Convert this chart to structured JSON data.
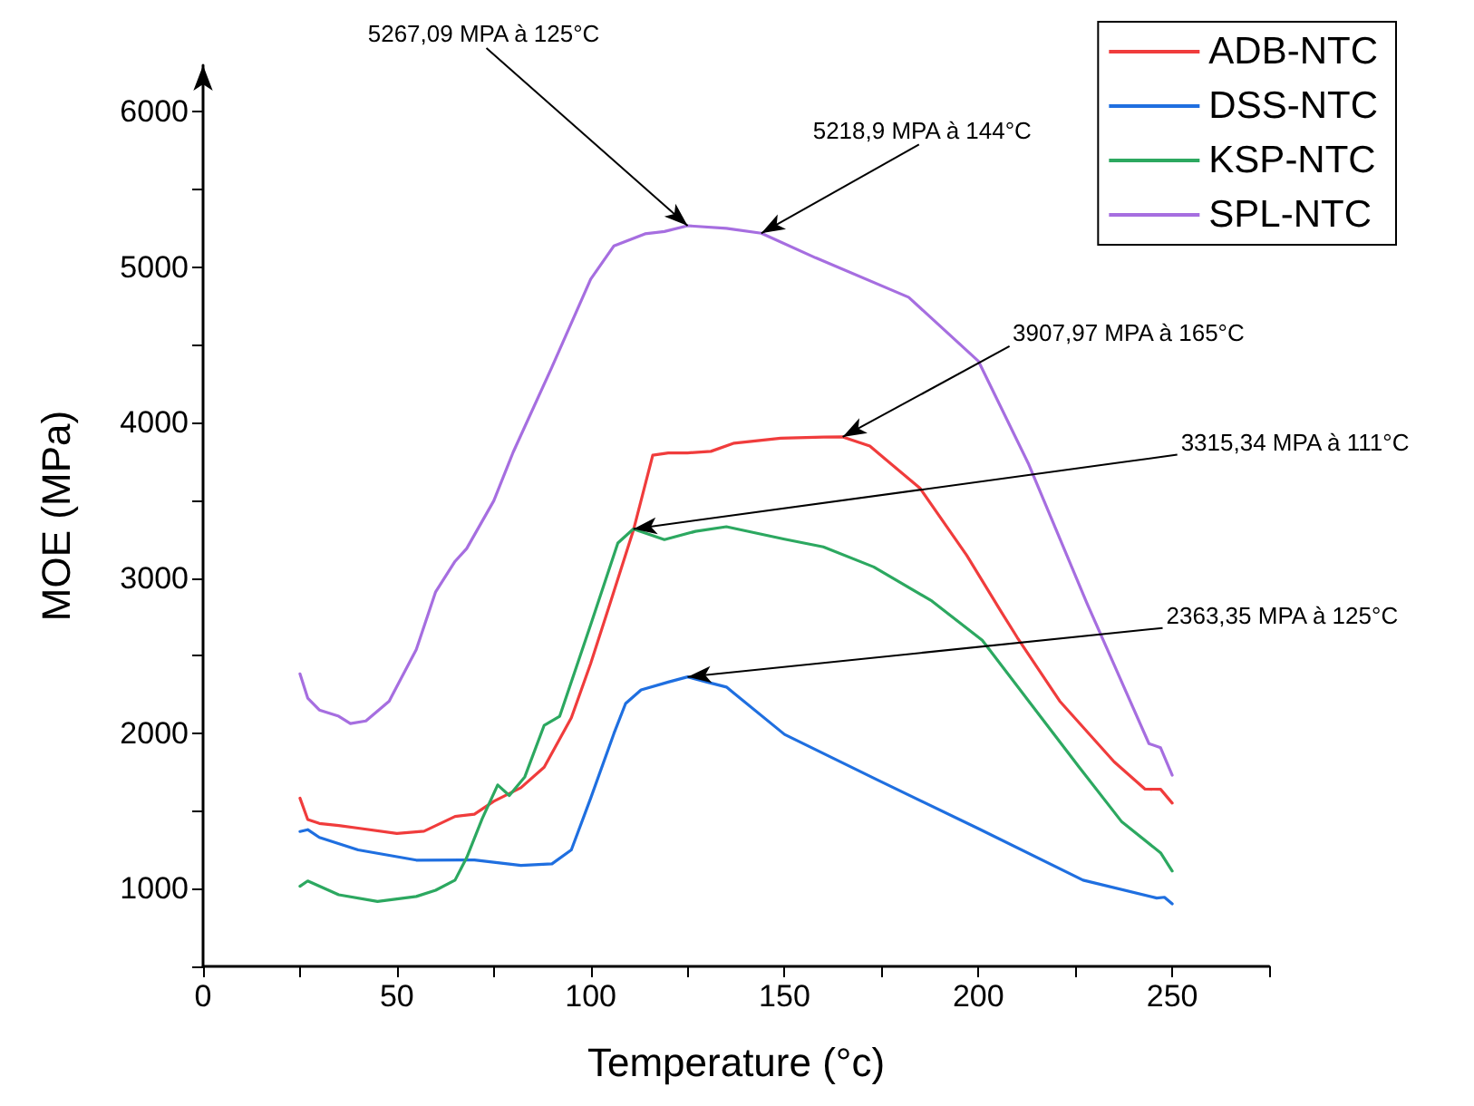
{
  "chart_data": {
    "type": "line",
    "xlabel": "Temperature (°c)",
    "ylabel": "MOE (MPa)",
    "xlim": [
      0,
      275
    ],
    "ylim": [
      500,
      6300
    ],
    "xticks": [
      0,
      {
        "value": 25,
        "label": null
      },
      50,
      {
        "value": 75,
        "label": null
      },
      100,
      {
        "value": 125,
        "label": null
      },
      150,
      {
        "value": 175,
        "label": null
      },
      200,
      {
        "value": 225,
        "label": null
      },
      250,
      {
        "value": 275,
        "label": null
      }
    ],
    "yticks": [
      {
        "value": 500,
        "label": null
      },
      1000,
      {
        "value": 1500,
        "label": null
      },
      2000,
      {
        "value": 2500,
        "label": null
      },
      3000,
      {
        "value": 3500,
        "label": null
      },
      4000,
      {
        "value": 4500,
        "label": null
      },
      5000,
      {
        "value": 5500,
        "label": null
      },
      6000
    ],
    "grid": false,
    "legend": "top right",
    "marker": "none",
    "line_style": "solid",
    "series": [
      {
        "name": "ADB-NTC",
        "color": "#f03c3c",
        "x": [
          25,
          27,
          30,
          35,
          40,
          50,
          57,
          65,
          70,
          75,
          82,
          88,
          95,
          100,
          105,
          111,
          116,
          120,
          125,
          131,
          137,
          149,
          160,
          165,
          172,
          185,
          197,
          206,
          210,
          221,
          235,
          243,
          247,
          250
        ],
        "values": [
          1583,
          1445,
          1420,
          1407,
          1390,
          1356,
          1370,
          1465,
          1480,
          1563,
          1650,
          1782,
          2100,
          2450,
          2837,
          3306,
          3790,
          3805,
          3805,
          3815,
          3868,
          3900,
          3907,
          3907.97,
          3849,
          3576,
          3145,
          2778,
          2618,
          2207,
          1817,
          1641,
          1640,
          1551
        ]
      },
      {
        "name": "DSS-NTC",
        "color": "#1f6fe0",
        "x": [
          25,
          27,
          30,
          40,
          55,
          70,
          82,
          90,
          95,
          100,
          106,
          109,
          113,
          120,
          125,
          130,
          135,
          150,
          174,
          200,
          227,
          246,
          248,
          250
        ],
        "values": [
          1368,
          1380,
          1330,
          1250,
          1184,
          1185,
          1150,
          1160,
          1250,
          1583,
          2000,
          2192,
          2280,
          2330,
          2363.35,
          2330,
          2298,
          1993,
          1700,
          1387,
          1055,
          940,
          945,
          903
        ]
      },
      {
        "name": "KSP-NTC",
        "color": "#2ca860",
        "x": [
          25,
          27,
          35,
          45,
          55,
          60,
          65,
          68,
          72,
          76,
          79,
          83,
          88,
          92,
          100,
          107,
          111,
          119,
          127,
          135,
          150,
          160,
          173,
          188,
          201,
          213,
          226,
          237,
          247,
          250
        ],
        "values": [
          1016,
          1050,
          961,
          918,
          950,
          990,
          1055,
          1200,
          1450,
          1668,
          1600,
          1720,
          2052,
          2110,
          2700,
          3225,
          3315.34,
          3247,
          3300,
          3330,
          3250,
          3200,
          3071,
          2852,
          2599,
          2207,
          1782,
          1430,
          1231,
          1114
        ]
      },
      {
        "name": "SPL-NTC",
        "color": "#a66ee0",
        "x": [
          25,
          27,
          30,
          35,
          38,
          42,
          48,
          55,
          60,
          65,
          68,
          75,
          80,
          90,
          100,
          106,
          114,
          119,
          125,
          135,
          144,
          158,
          182,
          200,
          213,
          228,
          235,
          244,
          247,
          250
        ],
        "values": [
          2383,
          2227,
          2150,
          2110,
          2063,
          2080,
          2207,
          2540,
          2911,
          3107,
          3189,
          3497,
          3810,
          4358,
          4924,
          5138,
          5215,
          5230,
          5267.09,
          5250,
          5218.9,
          5061,
          4807,
          4396,
          3731,
          2837,
          2442,
          1934,
          1907,
          1731
        ]
      }
    ],
    "annotations": [
      {
        "text": "5267,09 MPA à 125°C",
        "x": 125,
        "y": 5267.09
      },
      {
        "text": "5218,9 MPA à 144°C",
        "x": 144,
        "y": 5218.9
      },
      {
        "text": "3907,97 MPA à 165°C",
        "x": 165,
        "y": 3907.97
      },
      {
        "text": "3315,34 MPA à 111°C",
        "x": 111,
        "y": 3315.34
      },
      {
        "text": "2363,35 MPA à 125°C",
        "x": 125,
        "y": 2363.35
      }
    ]
  }
}
